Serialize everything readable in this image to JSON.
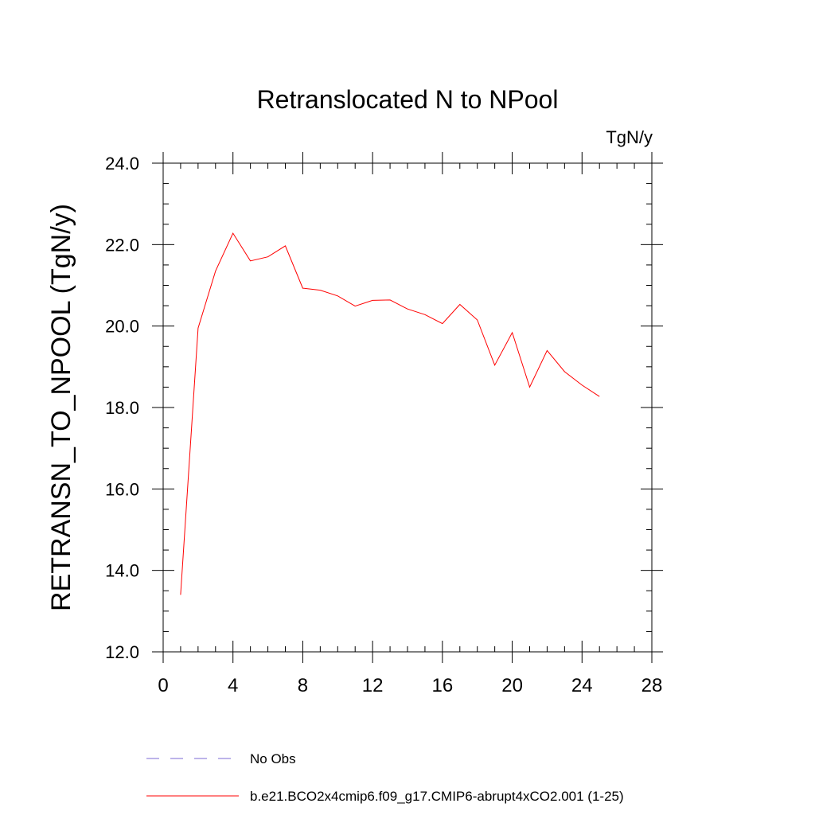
{
  "chart_data": {
    "type": "line",
    "title": "Retranslocated N to NPool",
    "units": "TgN/y",
    "ylabel": "RETRANSN_TO_NPOOL  (TgN/y)",
    "xlabel": "",
    "xlim": [
      0,
      28
    ],
    "ylim": [
      12.0,
      24.0
    ],
    "x_ticks": [
      0,
      4,
      8,
      12,
      16,
      20,
      24,
      28
    ],
    "y_ticks": [
      "12.0",
      "14.0",
      "16.0",
      "18.0",
      "20.0",
      "22.0",
      "24.0"
    ],
    "grid": false,
    "legend_position": "bottom",
    "series": [
      {
        "name": "No Obs",
        "color": "#7b68d6",
        "style": "dashed",
        "x": [],
        "values": []
      },
      {
        "name": "b.e21.BCO2x4cmip6.f09_g17.CMIP6-abrupt4xCO2.001 (1-25)",
        "color": "#ff0000",
        "style": "solid",
        "x": [
          1,
          2,
          3,
          4,
          5,
          6,
          7,
          8,
          9,
          10,
          11,
          12,
          13,
          14,
          15,
          16,
          17,
          18,
          19,
          20,
          21,
          22,
          23,
          24,
          25
        ],
        "values": [
          13.4,
          19.95,
          21.35,
          22.28,
          21.6,
          21.7,
          21.97,
          20.93,
          20.88,
          20.74,
          20.49,
          20.63,
          20.64,
          20.42,
          20.28,
          20.06,
          20.53,
          20.15,
          19.04,
          19.84,
          18.5,
          19.4,
          18.88,
          18.55,
          18.27
        ]
      }
    ]
  }
}
